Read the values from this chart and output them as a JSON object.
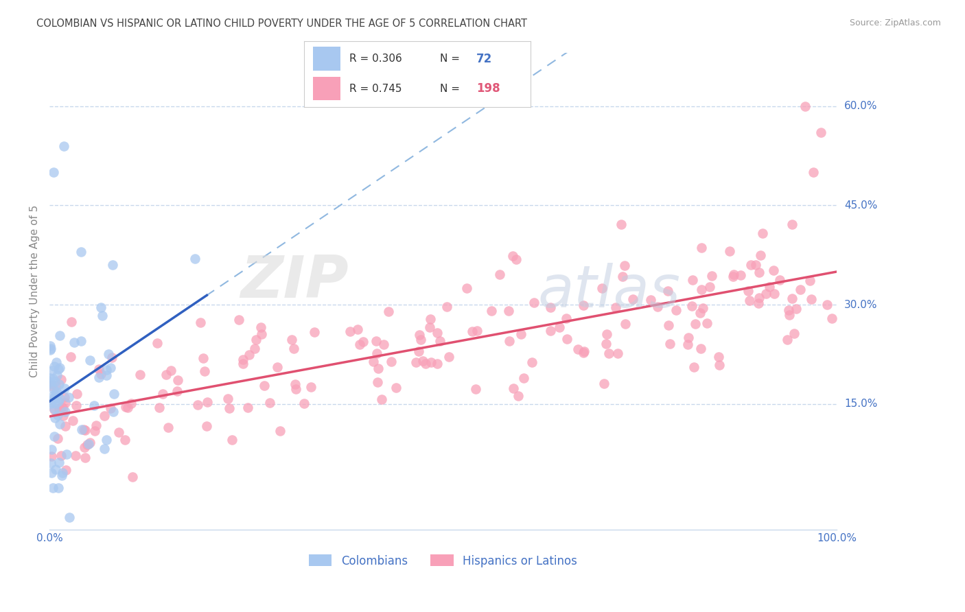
{
  "title": "COLOMBIAN VS HISPANIC OR LATINO CHILD POVERTY UNDER THE AGE OF 5 CORRELATION CHART",
  "source": "Source: ZipAtlas.com",
  "ylabel": "Child Poverty Under the Age of 5",
  "xlim": [
    0,
    1.0
  ],
  "ylim": [
    -0.04,
    0.68
  ],
  "ytick_positions": [
    0.15,
    0.3,
    0.45,
    0.6
  ],
  "ytick_labels": [
    "15.0%",
    "30.0%",
    "45.0%",
    "60.0%"
  ],
  "color_blue": "#A8C8F0",
  "color_pink": "#F8A0B8",
  "color_blue_text": "#4472C4",
  "color_pink_text": "#E05878",
  "color_line_blue": "#3060C0",
  "color_line_pink": "#E05070",
  "color_dashed_blue": "#90B8E0",
  "grid_color": "#C8D8EC",
  "background": "#FFFFFF",
  "watermark_zip": "ZIP",
  "watermark_atlas": "atlas",
  "seed": 42
}
